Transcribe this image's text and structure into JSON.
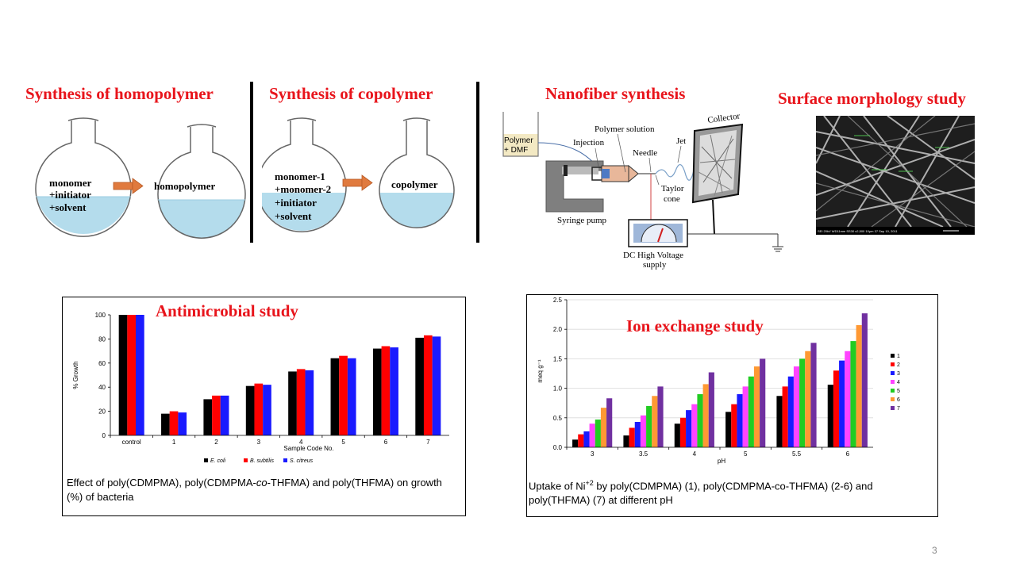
{
  "sections": {
    "homopolymer": {
      "title": "Synthesis of  homopolymer",
      "left_flask": [
        "monomer",
        "+initiator",
        "+solvent"
      ],
      "right_flask": "homopolymer"
    },
    "copolymer": {
      "title": "Synthesis of  copolymer",
      "left_flask": [
        "monomer-1",
        "+monomer-2",
        "+initiator",
        "+solvent"
      ],
      "right_flask": "copolymer"
    },
    "nanofiber": {
      "title": "Nanofiber synthesis",
      "labels": {
        "beaker_1": "Polymer",
        "beaker_2": "+ DMF",
        "polymer_solution": "Polymer solution",
        "injection": "Injection",
        "needle": "Needle",
        "jet": "Jet",
        "collector": "Collector",
        "taylor_1": "Taylor",
        "taylor_2": "cone",
        "syringe_pump": "Syringe pump",
        "dc_1": "DC High Voltage",
        "dc_2": "supply"
      }
    },
    "morphology": {
      "title": "Surface morphology study",
      "sem_footer": "SEI   20kV   WD11mm SS30      x2,500   10μm        37    Sep 10, 2011"
    }
  },
  "antimicrobial": {
    "title": "Antimicrobial study",
    "caption_parts": [
      "Effect of poly(CDMPMA),  poly(CDMPMA-",
      "co",
      "-THFMA) and poly(THFMA) on growth (%) of bacteria"
    ]
  },
  "ion_exchange": {
    "title": "Ion exchange study",
    "caption_parts": [
      "Uptake of Ni",
      "+2",
      " by poly(CDMPMA) (1), poly(CDMPMA-co-THFMA) (2-6) and poly(THFMA) (7) at different pH"
    ]
  },
  "page_number": "3",
  "chart_data": [
    {
      "type": "bar",
      "categories": [
        "control",
        "1",
        "2",
        "3",
        "4",
        "5",
        "6",
        "7"
      ],
      "series": [
        {
          "name": "E. coli",
          "color": "#000000",
          "values": [
            100,
            18,
            30,
            41,
            53,
            64,
            72,
            81
          ]
        },
        {
          "name": "B. subtilis",
          "color": "#ff0000",
          "values": [
            100,
            20,
            33,
            43,
            55,
            66,
            74,
            83
          ]
        },
        {
          "name": "S. citreus",
          "color": "#1a1aff",
          "values": [
            100,
            19,
            33,
            42,
            54,
            64,
            73,
            82
          ]
        }
      ],
      "xlabel": "Sample Code No.",
      "ylabel": "% Growth",
      "ylim": [
        0,
        100
      ],
      "yticks": [
        0,
        20,
        40,
        60,
        80,
        100
      ],
      "legend": "bottom"
    },
    {
      "type": "bar",
      "categories": [
        "3",
        "3.5",
        "4",
        "5",
        "5.5",
        "6"
      ],
      "series": [
        {
          "name": "1",
          "color": "#000000",
          "values": [
            0.13,
            0.2,
            0.4,
            0.6,
            0.87,
            1.06
          ]
        },
        {
          "name": "2",
          "color": "#ff0000",
          "values": [
            0.22,
            0.33,
            0.5,
            0.73,
            1.03,
            1.3
          ]
        },
        {
          "name": "3",
          "color": "#1a1aff",
          "values": [
            0.27,
            0.43,
            0.63,
            0.9,
            1.2,
            1.47
          ]
        },
        {
          "name": "4",
          "color": "#ff44ff",
          "values": [
            0.4,
            0.54,
            0.73,
            1.03,
            1.37,
            1.63
          ]
        },
        {
          "name": "5",
          "color": "#22cc22",
          "values": [
            0.47,
            0.7,
            0.9,
            1.2,
            1.5,
            1.8
          ]
        },
        {
          "name": "6",
          "color": "#ff9933",
          "values": [
            0.67,
            0.87,
            1.07,
            1.37,
            1.63,
            2.07
          ]
        },
        {
          "name": "7",
          "color": "#7030a0",
          "values": [
            0.83,
            1.03,
            1.27,
            1.5,
            1.77,
            2.27
          ]
        }
      ],
      "xlabel": "pH",
      "ylabel": "meq g⁻¹",
      "ylim": [
        0,
        2.5
      ],
      "yticks": [
        "0.0",
        "0.5",
        "1.0",
        "1.5",
        "2.0",
        "2.5"
      ],
      "legend": "right"
    }
  ]
}
